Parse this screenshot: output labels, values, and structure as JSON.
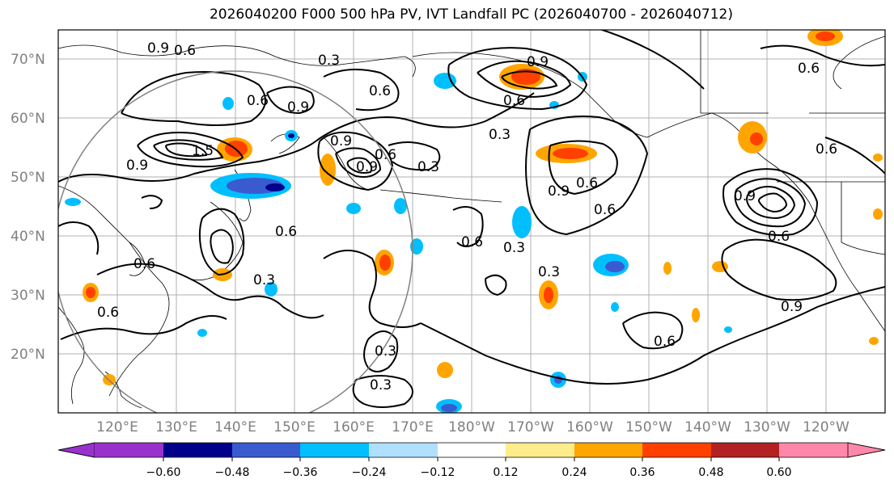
{
  "title": "2026040200 F000 500 hPa PV, IVT Landfall PC (2026040700 - 2026040712)",
  "lat_labels": [
    "70°N",
    "60°N",
    "50°N",
    "40°N",
    "30°N",
    "20°N"
  ],
  "lon_labels": [
    "120°E",
    "130°E",
    "140°E",
    "150°E",
    "160°E",
    "170°E",
    "180°W",
    "170°W",
    "160°W",
    "150°W",
    "140°W",
    "130°W",
    "120°W"
  ],
  "colorbar": {
    "colors": [
      "#9932cc",
      "#00008b",
      "#3a5bd0",
      "#00bfff",
      "#b0e0ff",
      "#ffffff",
      "#ffec8b",
      "#ffa500",
      "#ff4000",
      "#b22222",
      "#ff88aa"
    ],
    "tick_labels": [
      "−0.60",
      "−0.48",
      "−0.36",
      "−0.24",
      "−0.12",
      "0.12",
      "0.24",
      "0.36",
      "0.48",
      "0.60"
    ]
  },
  "contour_labels": [
    "0.9",
    "0.6",
    "0.3",
    "0.6",
    "0.9",
    "0.6",
    "0.9",
    "1.5",
    "0.9",
    "0.9",
    "0.6",
    "0.3",
    "0.9",
    "0.6",
    "0.3",
    "0.9",
    "0.6",
    "0.6",
    "0.6",
    "0.3",
    "0.6",
    "0.3",
    "0.9",
    "0.6",
    "0.6",
    "0.6",
    "0.3",
    "0.3",
    "0.3",
    "0.6",
    "0.6",
    "0.9",
    "0.6"
  ]
}
